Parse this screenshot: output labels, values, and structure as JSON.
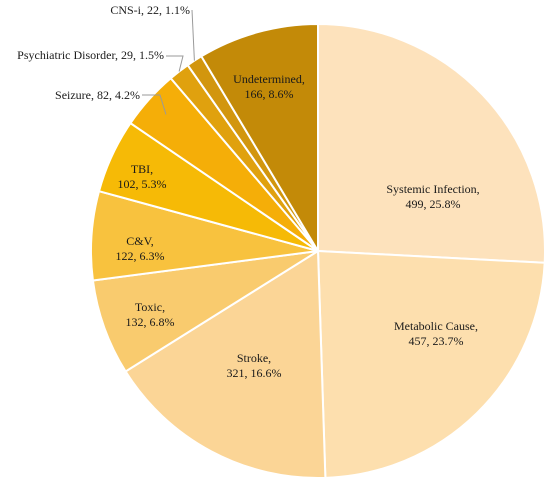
{
  "chart_data": {
    "type": "pie",
    "title": "",
    "slices": [
      {
        "name": "Systemic Infection",
        "value": 499,
        "percent": "25.8%",
        "color": "#FDE2BC"
      },
      {
        "name": "Metabolic Cause",
        "value": 457,
        "percent": "23.7%",
        "color": "#FDDFAE"
      },
      {
        "name": "Stroke",
        "value": 321,
        "percent": "16.6%",
        "color": "#FBD596"
      },
      {
        "name": "Toxic",
        "value": 132,
        "percent": "6.8%",
        "color": "#F9CB6E"
      },
      {
        "name": "C&V",
        "value": 122,
        "percent": "6.3%",
        "color": "#F8C23E"
      },
      {
        "name": "TBI",
        "value": 102,
        "percent": "5.3%",
        "color": "#F6BA06"
      },
      {
        "name": "Seizure",
        "value": 82,
        "percent": "4.2%",
        "color": "#F5AE08"
      },
      {
        "name": "Psychiatric Disorder",
        "value": 29,
        "percent": "1.5%",
        "color": "#E0A10E"
      },
      {
        "name": "CNS-i",
        "value": 22,
        "percent": "1.1%",
        "color": "#D2960E"
      },
      {
        "name": "Undetermined",
        "value": 166,
        "percent": "8.6%",
        "color": "#C38A08"
      }
    ]
  }
}
